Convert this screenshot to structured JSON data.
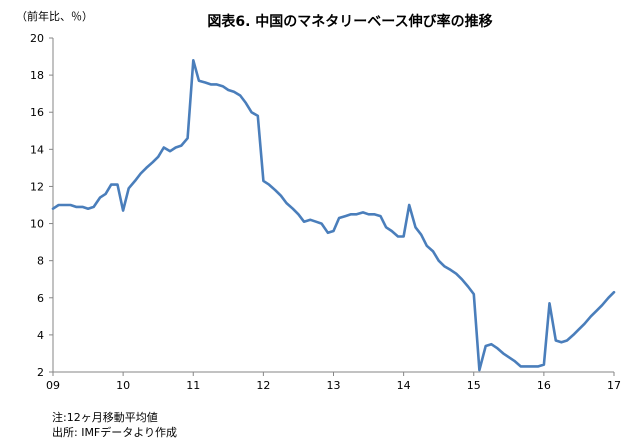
{
  "chart_data": {
    "type": "line",
    "title": "図表6. 中国のマネタリーベース伸び率の推移",
    "ylabel": "（前年比、％）",
    "xlabel": "",
    "ylim": [
      2,
      20
    ],
    "yticks": [
      "2",
      "4",
      "6",
      "8",
      "10",
      "12",
      "14",
      "16",
      "18",
      "20"
    ],
    "xlim": [
      2009.0,
      2017.0
    ],
    "xticks": [
      {
        "label": "09",
        "x": 2009
      },
      {
        "label": "10",
        "x": 2010
      },
      {
        "label": "11",
        "x": 2011
      },
      {
        "label": "12",
        "x": 2012
      },
      {
        "label": "13",
        "x": 2013
      },
      {
        "label": "14",
        "x": 2014
      },
      {
        "label": "15",
        "x": 2015
      },
      {
        "label": "16",
        "x": 2016
      },
      {
        "label": "17",
        "x": 2017
      }
    ],
    "grid": false,
    "legend": "none",
    "line_color": "#4a7ebb",
    "series": [
      {
        "x": [
          2009.0,
          2009.08,
          2009.17,
          2009.25,
          2009.33,
          2009.42,
          2009.5,
          2009.58,
          2009.67,
          2009.75,
          2009.83,
          2009.92,
          2010.0,
          2010.08,
          2010.17,
          2010.25,
          2010.33,
          2010.42,
          2010.5,
          2010.58,
          2010.67,
          2010.75,
          2010.83,
          2010.92,
          2011.0,
          2011.08,
          2011.17,
          2011.25,
          2011.33,
          2011.42,
          2011.5,
          2011.58,
          2011.67,
          2011.75,
          2011.83,
          2011.92,
          2012.0,
          2012.08,
          2012.17,
          2012.25,
          2012.33,
          2012.42,
          2012.5,
          2012.58,
          2012.67,
          2012.75,
          2012.83,
          2012.92,
          2013.0,
          2013.08,
          2013.17,
          2013.25,
          2013.33,
          2013.42,
          2013.5,
          2013.58,
          2013.67,
          2013.75,
          2013.83,
          2013.92,
          2014.0,
          2014.08,
          2014.17,
          2014.25,
          2014.33,
          2014.42,
          2014.5,
          2014.58,
          2014.67,
          2014.75,
          2014.83,
          2014.92,
          2015.0,
          2015.08,
          2015.17,
          2015.25,
          2015.33,
          2015.42,
          2015.5,
          2015.58,
          2015.67,
          2015.75,
          2015.83,
          2015.92,
          2016.0,
          2016.08,
          2016.17,
          2016.25,
          2016.33,
          2016.42,
          2016.5,
          2016.58,
          2016.67,
          2016.75,
          2016.83,
          2016.92,
          2017.0
        ],
        "values": [
          10.8,
          11.0,
          11.0,
          11.0,
          10.9,
          10.9,
          10.8,
          10.9,
          11.4,
          11.6,
          12.1,
          12.1,
          10.7,
          11.9,
          12.3,
          12.7,
          13.0,
          13.3,
          13.6,
          14.1,
          13.9,
          14.1,
          14.2,
          14.6,
          18.8,
          17.7,
          17.6,
          17.5,
          17.5,
          17.4,
          17.2,
          17.1,
          16.9,
          16.5,
          16.0,
          15.8,
          12.3,
          12.1,
          11.8,
          11.5,
          11.1,
          10.8,
          10.5,
          10.1,
          10.2,
          10.1,
          10.0,
          9.5,
          9.6,
          10.3,
          10.4,
          10.5,
          10.5,
          10.6,
          10.5,
          10.5,
          10.4,
          9.8,
          9.6,
          9.3,
          9.3,
          11.0,
          9.8,
          9.4,
          8.8,
          8.5,
          8.0,
          7.7,
          7.5,
          7.3,
          7.0,
          6.6,
          6.2,
          2.1,
          3.4,
          3.5,
          3.3,
          3.0,
          2.8,
          2.6,
          2.3,
          2.3,
          2.3,
          2.3,
          2.4,
          5.7,
          3.7,
          3.6,
          3.7,
          4.0,
          4.3,
          4.6,
          5.0,
          5.3,
          5.6,
          6.0,
          6.3
        ]
      }
    ]
  },
  "notes": {
    "note1": "注:12ヶ月移動平均値",
    "note2": "出所: IMFデータより作成"
  }
}
